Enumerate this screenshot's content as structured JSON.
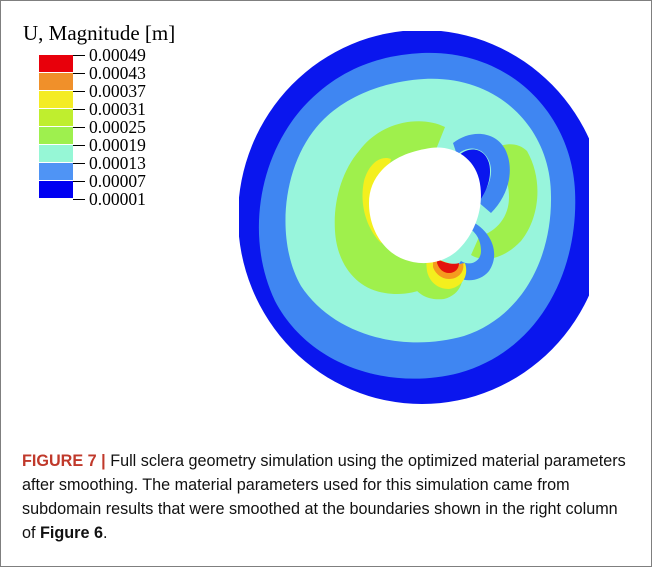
{
  "figure": {
    "legend_title": "U, Magnitude [m]",
    "legend": [
      {
        "label": "0.00049",
        "color": "#e8000b"
      },
      {
        "label": "0.00043",
        "color": "#f0902a"
      },
      {
        "label": "0.00037",
        "color": "#f4ec24"
      },
      {
        "label": "0.00031",
        "color": "#bfee2e"
      },
      {
        "label": "0.00025",
        "color": "#9ef04e"
      },
      {
        "label": "0.00019",
        "color": "#96f7d6"
      },
      {
        "label": "0.00013",
        "color": "#4f94f5"
      },
      {
        "label": "0.00007",
        "color": "#0000f2"
      },
      {
        "label": "0.00001",
        "color": null
      }
    ],
    "colors": {
      "outer_band": "#0a16ee",
      "blue_band": "#3f86f2",
      "cyan_band": "#98f5dc",
      "green_region": "#9ff04c",
      "yellow_region": "#f4ef1e",
      "orange_region": "#f59a1f",
      "red_region": "#e4120c",
      "hole": "#ffffff"
    }
  },
  "caption": {
    "label": "FIGURE 7 | ",
    "text_1": "Full sclera geometry simulation using the optimized material parameters after smoothing. The material parameters used for this simulation came from subdomain results that were smoothed at the boundaries shown in the right column of ",
    "ref": "Figure 6",
    "text_2": "."
  }
}
